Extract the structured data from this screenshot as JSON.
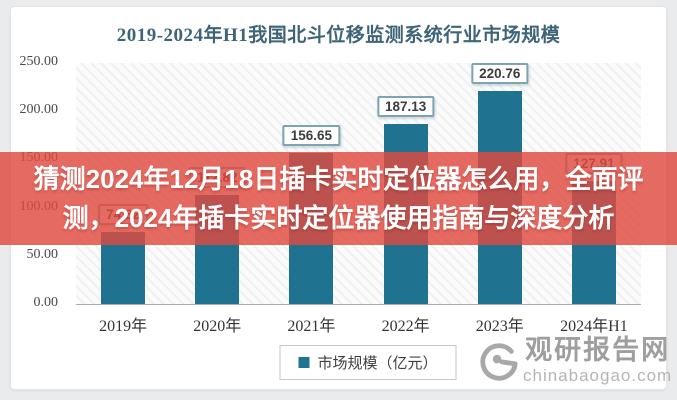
{
  "chart": {
    "title": "2019-2024年H1我国北斗位移监测系统行业市场规模",
    "legend_label": "市场规模（亿元）"
  },
  "chart_data": {
    "type": "bar",
    "title": "2019-2024年H1我国北斗位移监测系统行业市场规模",
    "categories": [
      "2019年",
      "2020年",
      "2021年",
      "2022年",
      "2023年",
      "2024年H1"
    ],
    "values": [
      74.82,
      112.82,
      156.65,
      187.13,
      220.76,
      127.91
    ],
    "value_labels": [
      "74.82",
      "112.82",
      "156.65",
      "187.13",
      "220.76",
      "127.91"
    ],
    "series_name": "市场规模（亿元）",
    "xlabel": "",
    "ylabel": "",
    "ylim": [
      0,
      250
    ],
    "ytick_labels": [
      "250.00",
      "200.00",
      "150.00",
      "100.00",
      "50.00",
      "0.00"
    ],
    "ytick_values": [
      250,
      200,
      150,
      100,
      50,
      0
    ],
    "grid": false,
    "legend_position": "bottom",
    "bar_color": "#1F7391",
    "notes": "2019 and 2020 value labels partially hidden behind overlay banner; values estimated from bar heights"
  },
  "overlay": {
    "lines": [
      "猜测2024年12月18日插卡实时定位器怎么用，全面评",
      "测，2024年插卡实时定位器使用指南与深度分析"
    ],
    "background_color": "#DF493E",
    "text_color": "#FFFFFF"
  },
  "watermark": {
    "site_name": "观研报告网",
    "site_domain": "chinabaogao.com"
  },
  "colors": {
    "bar": "#1F7391",
    "title_text": "#3E6577",
    "banner_red": "#DF493E",
    "card_background": "#FFFFFF",
    "page_background": "#E9EBED"
  }
}
